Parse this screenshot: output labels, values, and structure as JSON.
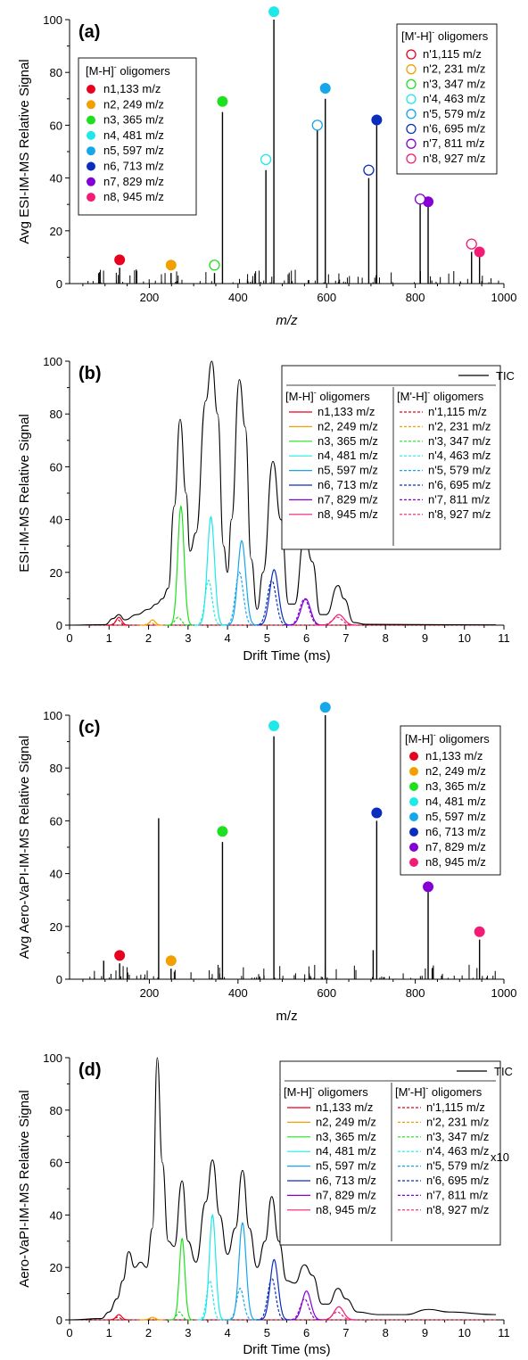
{
  "legend_titles": {
    "mh": "[M-H]",
    "mph": "[M'-H]",
    "minus": "-",
    "suffix": " oligomers",
    "tic": "TIC"
  },
  "species_n": [
    {
      "label": "n1,133 m/z",
      "mz": 133,
      "color": "#e8001f"
    },
    {
      "label": "n2, 249 m/z",
      "mz": 249,
      "color": "#f2a000"
    },
    {
      "label": "n3, 365 m/z",
      "mz": 365,
      "color": "#1fe01f"
    },
    {
      "label": "n4, 481 m/z",
      "mz": 481,
      "color": "#1fe8e8"
    },
    {
      "label": "n5, 597 m/z",
      "mz": 597,
      "color": "#16a6ea"
    },
    {
      "label": "n6, 713 m/z",
      "mz": 713,
      "color": "#0b2dbd"
    },
    {
      "label": "n7, 829 m/z",
      "mz": 829,
      "color": "#8300d6"
    },
    {
      "label": "n8, 945 m/z",
      "mz": 945,
      "color": "#f21c75"
    }
  ],
  "species_np": [
    {
      "label": "n'1,115 m/z",
      "mz": 115
    },
    {
      "label": "n'2, 231 m/z",
      "mz": 231
    },
    {
      "label": "n'3, 347 m/z",
      "mz": 347
    },
    {
      "label": "n'4, 463 m/z",
      "mz": 463
    },
    {
      "label": "n'5, 579 m/z",
      "mz": 579
    },
    {
      "label": "n'6, 695 m/z",
      "mz": 695
    },
    {
      "label": "n'7, 811 m/z",
      "mz": 811
    },
    {
      "label": "n'8, 927 m/z",
      "mz": 927
    }
  ],
  "chart_data": [
    {
      "panel": "(a)",
      "type": "bar",
      "xlabel": "m/z",
      "ylabel": "Avg ESI-IM-MS Relative Signal",
      "xlim": [
        20,
        1000
      ],
      "ylim": [
        0,
        100
      ],
      "xticks": [
        200,
        400,
        600,
        800,
        1000
      ],
      "yticks": [
        0,
        20,
        40,
        60,
        80,
        100
      ],
      "major_peaks": [
        {
          "mz": 133,
          "y": 6
        },
        {
          "mz": 249,
          "y": 4
        },
        {
          "mz": 347,
          "y": 4
        },
        {
          "mz": 365,
          "y": 65
        },
        {
          "mz": 463,
          "y": 43
        },
        {
          "mz": 481,
          "y": 100
        },
        {
          "mz": 579,
          "y": 58
        },
        {
          "mz": 597,
          "y": 70
        },
        {
          "mz": 695,
          "y": 40
        },
        {
          "mz": 713,
          "y": 60
        },
        {
          "mz": 811,
          "y": 30
        },
        {
          "mz": 829,
          "y": 30
        },
        {
          "mz": 927,
          "y": 12
        },
        {
          "mz": 945,
          "y": 10
        }
      ],
      "markers_filled": [
        {
          "mz": 133,
          "y": 9
        },
        {
          "mz": 249,
          "y": 7
        },
        {
          "mz": 365,
          "y": 69
        },
        {
          "mz": 481,
          "y": 103
        },
        {
          "mz": 597,
          "y": 74
        },
        {
          "mz": 713,
          "y": 62
        },
        {
          "mz": 829,
          "y": 31
        },
        {
          "mz": 945,
          "y": 12
        }
      ],
      "markers_open": [
        {
          "mz": 347,
          "y": 7
        },
        {
          "mz": 463,
          "y": 47
        },
        {
          "mz": 579,
          "y": 60
        },
        {
          "mz": 695,
          "y": 43
        },
        {
          "mz": 811,
          "y": 32
        },
        {
          "mz": 927,
          "y": 15
        }
      ]
    },
    {
      "panel": "(b)",
      "type": "line",
      "xlabel": "Drift Time (ms)",
      "ylabel": "ESI-IM-MS Relative Signal",
      "xlim": [
        0,
        11
      ],
      "ylim": [
        0,
        100
      ],
      "xticks": [
        0,
        1,
        2,
        3,
        4,
        5,
        6,
        7,
        8,
        9,
        10,
        11
      ],
      "yticks": [
        0,
        20,
        40,
        60,
        80,
        100
      ],
      "tic_points": [
        [
          0,
          0
        ],
        [
          0.9,
          0.2
        ],
        [
          1.1,
          2.5
        ],
        [
          1.25,
          4
        ],
        [
          1.4,
          2
        ],
        [
          1.7,
          4
        ],
        [
          2.0,
          6
        ],
        [
          2.2,
          8
        ],
        [
          2.35,
          10
        ],
        [
          2.5,
          14
        ],
        [
          2.65,
          45
        ],
        [
          2.8,
          78
        ],
        [
          2.95,
          50
        ],
        [
          3.05,
          28
        ],
        [
          3.2,
          35
        ],
        [
          3.45,
          85
        ],
        [
          3.6,
          100
        ],
        [
          3.75,
          80
        ],
        [
          3.9,
          30
        ],
        [
          4.0,
          20
        ],
        [
          4.1,
          40
        ],
        [
          4.3,
          93
        ],
        [
          4.45,
          75
        ],
        [
          4.6,
          25
        ],
        [
          4.75,
          6
        ],
        [
          4.9,
          20
        ],
        [
          5.15,
          62
        ],
        [
          5.35,
          40
        ],
        [
          5.55,
          8
        ],
        [
          5.7,
          8
        ],
        [
          5.95,
          34
        ],
        [
          6.15,
          24
        ],
        [
          6.35,
          4
        ],
        [
          6.5,
          4
        ],
        [
          6.8,
          15
        ],
        [
          6.95,
          10
        ],
        [
          7.2,
          1
        ],
        [
          7.5,
          0.3
        ],
        [
          10.8,
          0.1
        ]
      ],
      "n_peaks": [
        {
          "center": 1.25,
          "height": 3,
          "width": 0.07
        },
        {
          "center": 2.1,
          "height": 2,
          "width": 0.07
        },
        {
          "center": 2.82,
          "height": 45,
          "width": 0.08
        },
        {
          "center": 3.58,
          "height": 41,
          "width": 0.09
        },
        {
          "center": 4.36,
          "height": 32,
          "width": 0.1
        },
        {
          "center": 5.18,
          "height": 21,
          "width": 0.11
        },
        {
          "center": 5.98,
          "height": 10,
          "width": 0.12
        },
        {
          "center": 6.82,
          "height": 4,
          "width": 0.13
        }
      ],
      "np_peaks": [
        {
          "center": 1.22,
          "height": 2,
          "width": 0.07
        },
        {
          "center": 2.05,
          "height": 1,
          "width": 0.07
        },
        {
          "center": 2.75,
          "height": 3,
          "width": 0.08
        },
        {
          "center": 3.52,
          "height": 17,
          "width": 0.09
        },
        {
          "center": 4.3,
          "height": 20,
          "width": 0.1
        },
        {
          "center": 5.12,
          "height": 17,
          "width": 0.11
        },
        {
          "center": 5.95,
          "height": 10,
          "width": 0.12
        },
        {
          "center": 6.78,
          "height": 3,
          "width": 0.13
        }
      ]
    },
    {
      "panel": "(c)",
      "type": "bar",
      "xlabel": "m/z",
      "ylabel": "Avg Aero-VaPI-IM-MS Relative Signal",
      "xlim": [
        20,
        1000
      ],
      "ylim": [
        0,
        100
      ],
      "xticks": [
        200,
        400,
        600,
        800,
        1000
      ],
      "yticks": [
        0,
        20,
        40,
        60,
        80,
        100
      ],
      "major_peaks": [
        {
          "mz": 97,
          "y": 7
        },
        {
          "mz": 133,
          "y": 6
        },
        {
          "mz": 221,
          "y": 61
        },
        {
          "mz": 249,
          "y": 4
        },
        {
          "mz": 365,
          "y": 52
        },
        {
          "mz": 481,
          "y": 92
        },
        {
          "mz": 597,
          "y": 100
        },
        {
          "mz": 705,
          "y": 11
        },
        {
          "mz": 713,
          "y": 60
        },
        {
          "mz": 829,
          "y": 33
        },
        {
          "mz": 945,
          "y": 15
        }
      ],
      "markers_filled": [
        {
          "mz": 133,
          "y": 9
        },
        {
          "mz": 249,
          "y": 7
        },
        {
          "mz": 365,
          "y": 56
        },
        {
          "mz": 481,
          "y": 96
        },
        {
          "mz": 597,
          "y": 103
        },
        {
          "mz": 713,
          "y": 63
        },
        {
          "mz": 829,
          "y": 35
        },
        {
          "mz": 945,
          "y": 18
        }
      ]
    },
    {
      "panel": "(d)",
      "type": "line",
      "xlabel": "Drift Time (ms)",
      "ylabel": "Aero-VaPI-IM-MS Relative Signal",
      "xlim": [
        0,
        11
      ],
      "ylim": [
        0,
        100
      ],
      "xticks": [
        0,
        1,
        2,
        3,
        4,
        5,
        6,
        7,
        8,
        9,
        10,
        11
      ],
      "yticks": [
        0,
        20,
        40,
        60,
        80,
        100
      ],
      "annotation": "x10",
      "tic_points": [
        [
          0,
          0
        ],
        [
          0.8,
          0.5
        ],
        [
          1.0,
          3
        ],
        [
          1.2,
          8
        ],
        [
          1.35,
          15
        ],
        [
          1.5,
          26
        ],
        [
          1.65,
          20
        ],
        [
          1.8,
          22
        ],
        [
          1.95,
          20
        ],
        [
          2.1,
          35
        ],
        [
          2.22,
          100
        ],
        [
          2.35,
          60
        ],
        [
          2.5,
          30
        ],
        [
          2.65,
          28
        ],
        [
          2.85,
          53
        ],
        [
          3.0,
          30
        ],
        [
          3.2,
          22
        ],
        [
          3.45,
          45
        ],
        [
          3.62,
          61
        ],
        [
          3.8,
          40
        ],
        [
          4.0,
          25
        ],
        [
          4.2,
          35
        ],
        [
          4.38,
          57
        ],
        [
          4.55,
          35
        ],
        [
          4.75,
          20
        ],
        [
          4.95,
          30
        ],
        [
          5.12,
          47
        ],
        [
          5.3,
          30
        ],
        [
          5.5,
          15
        ],
        [
          5.7,
          14
        ],
        [
          5.95,
          21
        ],
        [
          6.15,
          17
        ],
        [
          6.4,
          6
        ],
        [
          6.55,
          6
        ],
        [
          6.8,
          12
        ],
        [
          7.0,
          8
        ],
        [
          7.3,
          3
        ],
        [
          7.8,
          2
        ],
        [
          8.5,
          2
        ],
        [
          9.1,
          4
        ],
        [
          9.6,
          3
        ],
        [
          10.8,
          2
        ]
      ],
      "n_peaks": [
        {
          "center": 1.25,
          "height": 2,
          "width": 0.07
        },
        {
          "center": 2.1,
          "height": 1,
          "width": 0.07
        },
        {
          "center": 2.85,
          "height": 31,
          "width": 0.07
        },
        {
          "center": 3.62,
          "height": 40,
          "width": 0.08
        },
        {
          "center": 4.38,
          "height": 37,
          "width": 0.09
        },
        {
          "center": 5.18,
          "height": 23,
          "width": 0.1
        },
        {
          "center": 6.0,
          "height": 11,
          "width": 0.11
        },
        {
          "center": 6.82,
          "height": 5,
          "width": 0.12
        }
      ],
      "np_peaks": [
        {
          "center": 1.22,
          "height": 1,
          "width": 0.07
        },
        {
          "center": 2.05,
          "height": 0.5,
          "width": 0.07
        },
        {
          "center": 2.78,
          "height": 3,
          "width": 0.07
        },
        {
          "center": 3.55,
          "height": 15,
          "width": 0.08
        },
        {
          "center": 4.32,
          "height": 12,
          "width": 0.09
        },
        {
          "center": 5.12,
          "height": 16,
          "width": 0.1
        },
        {
          "center": 5.95,
          "height": 8,
          "width": 0.11
        },
        {
          "center": 6.78,
          "height": 3,
          "width": 0.12
        }
      ]
    }
  ]
}
